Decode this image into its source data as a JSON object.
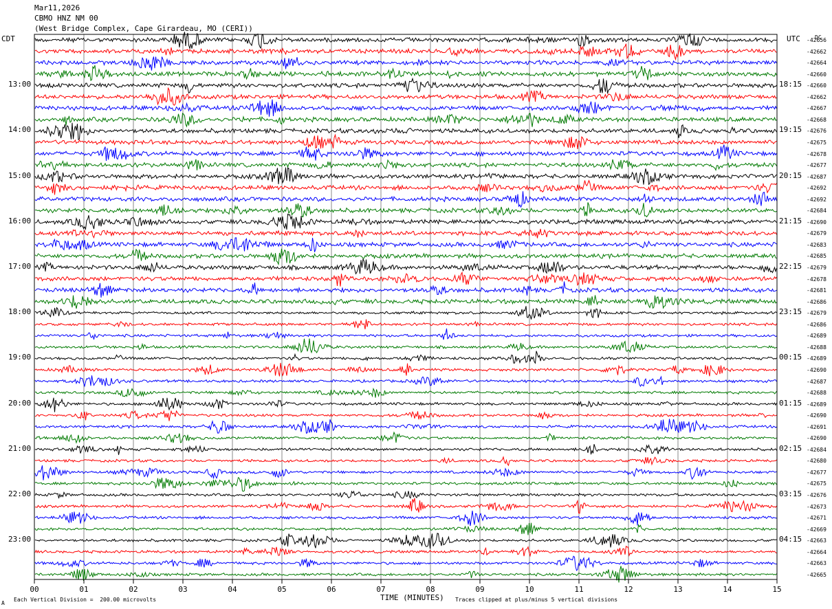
{
  "header": {
    "date": "Mar11,2026",
    "station": "CBMO HNZ NM 00",
    "location": "(West Bridge Complex, Cape Girardeau, MO (CERI))"
  },
  "left_label": "CDT",
  "right_label": "UTC",
  "dc_label": "DC",
  "footer": {
    "xlabel": "TIME (MINUTES)",
    "scale_note": "Each Vertical Division =  200.00 microvolts",
    "clip_note": "Traces clipped at plus/minus 5 vertical divisions",
    "corner_mark": "A"
  },
  "colors": {
    "trace_cycle": [
      "#000000",
      "#ff0000",
      "#0000ff",
      "#007a00"
    ],
    "grid": "#888888",
    "frame": "#000000"
  },
  "chart_data": {
    "type": "line",
    "title": "CBMO HNZ NM 00",
    "xlabel": "TIME (MINUTES)",
    "xlim": [
      0,
      15
    ],
    "x_ticks": [
      "00",
      "01",
      "02",
      "03",
      "04",
      "05",
      "06",
      "07",
      "08",
      "09",
      "10",
      "11",
      "12",
      "13",
      "14",
      "15"
    ],
    "rows_per_hour": 4,
    "left_time_labels": [
      "13:00",
      "14:00",
      "15:00",
      "16:00",
      "17:00",
      "18:00",
      "19:00",
      "20:00",
      "21:00",
      "22:00",
      "23:00"
    ],
    "right_time_labels": [
      "18:15",
      "19:15",
      "20:15",
      "21:15",
      "22:15",
      "23:15",
      "00:15",
      "01:15",
      "02:15",
      "03:15",
      "04:15"
    ],
    "dc_offsets": [
      -42656,
      -42662,
      -42664,
      -42660,
      -42660,
      -42662,
      -42667,
      -42668,
      -42676,
      -42675,
      -42678,
      -42677,
      -42687,
      -42692,
      -42692,
      -42684,
      -42690,
      -42679,
      -42683,
      -42685,
      -42679,
      -42678,
      -42681,
      -42686,
      -42679,
      -42686,
      -42689,
      -42688,
      -42689,
      -42690,
      -42687,
      -42688,
      -42689,
      -42690,
      -42691,
      -42690,
      -42684,
      -42680,
      -42677,
      -42675,
      -42676,
      -42673,
      -42671,
      -42669,
      -42663,
      -42664,
      -42663,
      -42665
    ],
    "vertical_division_microvolts": 200.0,
    "clip_divisions": 5
  }
}
